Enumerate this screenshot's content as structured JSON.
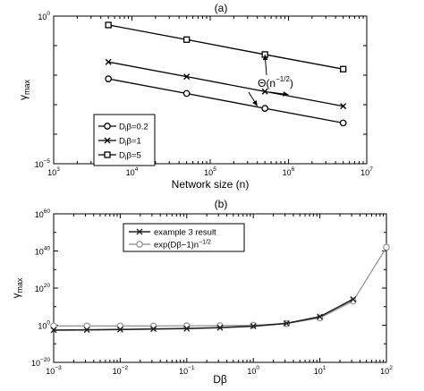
{
  "chart_data": [
    {
      "type": "line",
      "title": "(a)",
      "xlabel": "Network size (n)",
      "ylabel": "γmax",
      "xscale": "log",
      "yscale": "log",
      "xlim": [
        1000,
        10000000
      ],
      "ylim": [
        1e-05,
        1
      ],
      "x_ticks": [
        {
          "base": "10",
          "exp": "3",
          "value": 1000
        },
        {
          "base": "10",
          "exp": "4",
          "value": 10000
        },
        {
          "base": "10",
          "exp": "5",
          "value": 100000
        },
        {
          "base": "10",
          "exp": "6",
          "value": 1000000
        },
        {
          "base": "10",
          "exp": "7",
          "value": 10000000
        }
      ],
      "y_ticks": [
        {
          "base": "10",
          "exp": "0",
          "value": 1
        },
        {
          "base": "10",
          "exp": "−5",
          "value": 1e-05
        }
      ],
      "x": [
        5000,
        50000,
        500000,
        5000000
      ],
      "series": [
        {
          "name": "D",
          "legend_sub": "i",
          "legend_rest": "β=0.2",
          "marker": "circle",
          "values": [
            0.0075,
            0.0024,
            0.00075,
            0.00024
          ]
        },
        {
          "name": "D",
          "legend_sub": "i",
          "legend_rest": "β=1",
          "marker": "x",
          "values": [
            0.028,
            0.0089,
            0.0028,
            0.00089
          ]
        },
        {
          "name": "D",
          "legend_sub": "i",
          "legend_rest": "β=5",
          "marker": "square",
          "values": [
            0.5,
            0.16,
            0.05,
            0.016
          ]
        }
      ],
      "legend_position": "lower-left",
      "annotation": {
        "text": "Θ(n",
        "exp": "−1/2",
        "close": ")",
        "arrow_targets": [
          {
            "x": 500000,
            "y": 0.05
          },
          {
            "x": 1000000,
            "y": 0.0022
          },
          {
            "x": 400000,
            "y": 0.0009
          }
        ]
      },
      "grid": false
    },
    {
      "type": "line",
      "title": "(b)",
      "xlabel": "Dβ",
      "ylabel": "γmax",
      "xscale": "log",
      "yscale": "log",
      "xlim": [
        0.001,
        100
      ],
      "ylim": [
        1e-20,
        1e+60
      ],
      "x_ticks": [
        {
          "base": "10",
          "exp": "−3",
          "value": 0.001
        },
        {
          "base": "10",
          "exp": "−2",
          "value": 0.01
        },
        {
          "base": "10",
          "exp": "−1",
          "value": 0.1
        },
        {
          "base": "10",
          "exp": "0",
          "value": 1
        },
        {
          "base": "10",
          "exp": "1",
          "value": 10
        },
        {
          "base": "10",
          "exp": "2",
          "value": 100
        }
      ],
      "y_ticks": [
        {
          "base": "10",
          "exp": "−20",
          "value": 1e-20
        },
        {
          "base": "10",
          "exp": "0",
          "value": 1
        },
        {
          "base": "10",
          "exp": "20",
          "value": 1e+20
        },
        {
          "base": "10",
          "exp": "40",
          "value": 1e+40
        },
        {
          "base": "10",
          "exp": "60",
          "value": 1e+60
        }
      ],
      "x": [
        0.001,
        0.00316,
        0.01,
        0.0316,
        0.1,
        0.316,
        1,
        3.16,
        10,
        31.6,
        100
      ],
      "series": [
        {
          "name": "example 3 result",
          "marker": "x",
          "color": "#222222",
          "log10_values": [
            -2.6,
            -2.5,
            -2.3,
            -2.0,
            -1.8,
            -1.3,
            -0.5,
            1.0,
            4.6,
            14.0,
            null
          ]
        },
        {
          "name": "exp(Dβ−1)n",
          "name_exp": "−1/2",
          "marker": "circle",
          "color": "#999999",
          "log10_values": [
            -0.4,
            -0.4,
            -0.4,
            -0.4,
            -0.3,
            -0.2,
            0.0,
            0.9,
            3.9,
            13.0,
            42.0
          ]
        }
      ],
      "legend_position": "top-center",
      "grid": false
    }
  ]
}
